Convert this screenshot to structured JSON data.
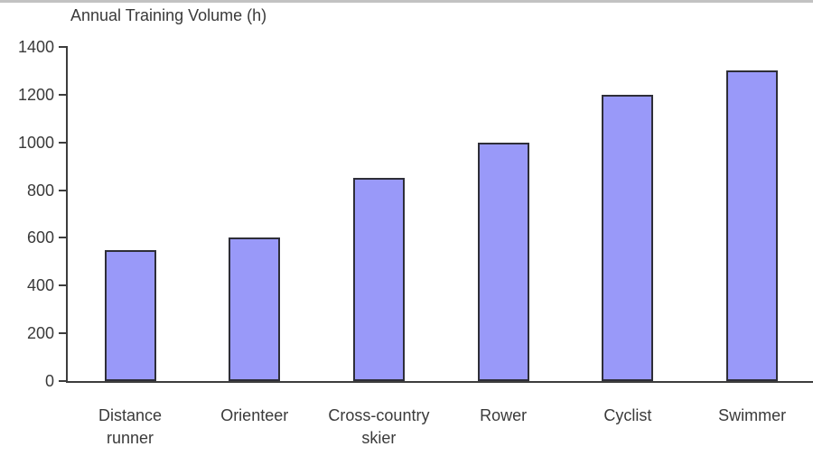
{
  "page": {
    "background": "#ffffff",
    "top_rule_color": "#c2c2c2"
  },
  "chart_data": {
    "type": "bar",
    "title": "Annual Training Volume (h)",
    "categories": [
      "Distance runner",
      "Orienteer",
      "Cross-country skier",
      "Rower",
      "Cyclist",
      "Swimmer"
    ],
    "category_label_lines": [
      [
        "Distance",
        "runner"
      ],
      [
        "Orienteer"
      ],
      [
        "Cross-country",
        "skier"
      ],
      [
        "Rower"
      ],
      [
        "Cyclist"
      ],
      [
        "Swimmer"
      ]
    ],
    "values": [
      550,
      600,
      850,
      1000,
      1200,
      1300
    ],
    "xlabel": "",
    "ylabel": "",
    "ylim": [
      0,
      1400
    ],
    "ytick_step": 200,
    "ytick_labels": [
      "0",
      "200",
      "400",
      "600",
      "800",
      "1000",
      "1200",
      "1400"
    ],
    "grid": false,
    "legend": false,
    "bar_fill_color": "#9999f9",
    "bar_border_color": "#2e2e38",
    "axis_color": "#3d3d3d",
    "text_color": "#3a3a3a"
  }
}
